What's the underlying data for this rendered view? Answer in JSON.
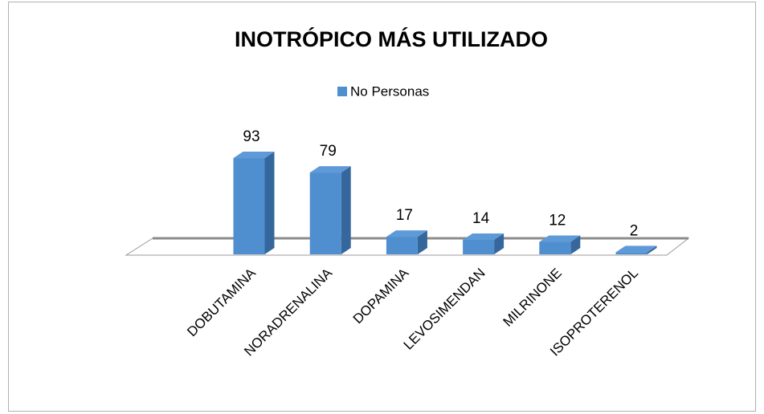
{
  "chart_data": {
    "type": "bar3d",
    "title": "INOTRÓPICO MÁS UTILIZADO",
    "categories": [
      "DOBUTAMINA",
      "NORADRENALINA",
      "DOPAMINA",
      "LEVOSIMENDAN",
      "MILRINONE",
      "ISOPROTERENOL"
    ],
    "series": [
      {
        "name": "No Personas",
        "color": "#4f8fd0",
        "values": [
          93,
          79,
          17,
          14,
          12,
          2
        ]
      }
    ],
    "legend": "top"
  }
}
